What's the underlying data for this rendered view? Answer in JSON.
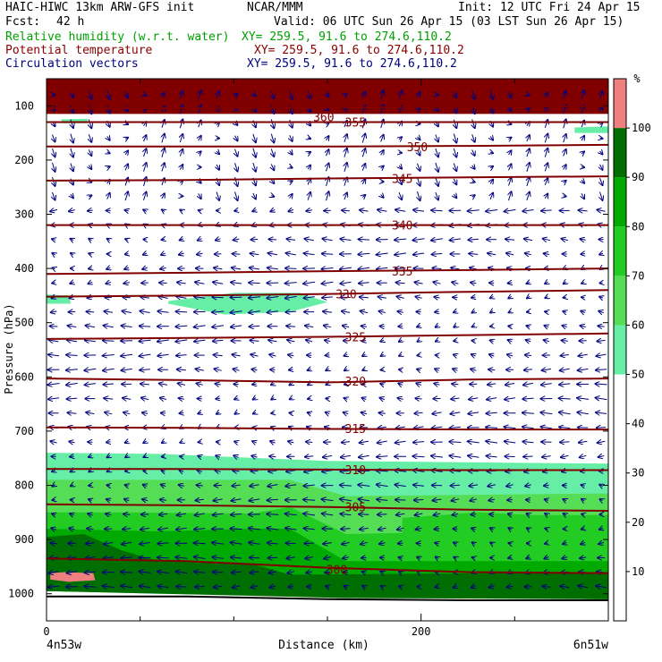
{
  "header": {
    "model_title": "HAIC-HIWC 13km ARW-GFS init",
    "org": "NCAR/MMM",
    "init": "Init: 12 UTC Fri 24 Apr 15",
    "fcst_label": "Fcst:",
    "fcst_value": "42 h",
    "valid": "Valid: 06 UTC Sun 26 Apr 15 (03 LST Sun 26 Apr 15)"
  },
  "fields": [
    {
      "name": "Relative humidity (w.r.t. water)",
      "xy": "XY= 259.5, 91.6 to 274.6,110.2",
      "color": "#00a000"
    },
    {
      "name": "Potential temperature",
      "xy": "XY= 259.5, 91.6 to 274.6,110.2",
      "color": "#8b0000"
    },
    {
      "name": "Circulation vectors",
      "xy": "XY= 259.5, 91.6 to 274.6,110.2",
      "color": "#000080"
    }
  ],
  "chart_data": {
    "type": "heatmap",
    "xlabel": "Distance (km)",
    "ylabel": "Pressure (hPa)",
    "x_ticks": [
      0,
      200
    ],
    "x_endpoint_labels": [
      "4n53w",
      "6n51w"
    ],
    "xlim": [
      0,
      300
    ],
    "y_ticks": [
      100,
      200,
      300,
      400,
      500,
      600,
      700,
      800,
      900,
      1000
    ],
    "ylim": [
      1050,
      50
    ],
    "colorbar": {
      "unit": "%",
      "levels": [
        10,
        20,
        30,
        40,
        50,
        60,
        70,
        80,
        90,
        100
      ],
      "bands": [
        {
          "from": 50,
          "to": 60,
          "color": "#66eea6"
        },
        {
          "from": 60,
          "to": 70,
          "color": "#55dd55"
        },
        {
          "from": 70,
          "to": 80,
          "color": "#22cc22"
        },
        {
          "from": 80,
          "to": 90,
          "color": "#00aa00"
        },
        {
          "from": 90,
          "to": 100,
          "color": "#006e00"
        },
        {
          "from": 100,
          "to": 110,
          "color": "#f08080"
        }
      ]
    },
    "isentropes": [
      {
        "theta": 300,
        "p": [
          935,
          940,
          952,
          960,
          962
        ]
      },
      {
        "theta": 305,
        "p": [
          835,
          837,
          840,
          845,
          847
        ]
      },
      {
        "theta": 310,
        "p": [
          770,
          770,
          771,
          772,
          772
        ]
      },
      {
        "theta": 315,
        "p": [
          693,
          694,
          696,
          697,
          697
        ]
      },
      {
        "theta": 320,
        "p": [
          603,
          606,
          610,
          605,
          603
        ]
      },
      {
        "theta": 325,
        "p": [
          530,
          528,
          526,
          523,
          520
        ]
      },
      {
        "theta": 330,
        "p": [
          452,
          450,
          447,
          443,
          440
        ]
      },
      {
        "theta": 335,
        "p": [
          410,
          408,
          405,
          403,
          400
        ]
      },
      {
        "theta": 340,
        "p": [
          320,
          320,
          320,
          320,
          320
        ]
      },
      {
        "theta": 345,
        "p": [
          238,
          237,
          234,
          232,
          230
        ]
      },
      {
        "theta": 350,
        "p": [
          175,
          175,
          175,
          174,
          172
        ]
      },
      {
        "theta": 355,
        "p": [
          130,
          130,
          130,
          130,
          130
        ]
      },
      {
        "theta": 360,
        "p": [
          105,
          104,
          103,
          102,
          101
        ]
      }
    ],
    "isentrope_x": [
      0,
      75,
      150,
      225,
      300
    ],
    "isentrope_label_positions": [
      {
        "theta": 300,
        "x": 155,
        "p": 955
      },
      {
        "theta": 305,
        "x": 165,
        "p": 840
      },
      {
        "theta": 310,
        "x": 165,
        "p": 771
      },
      {
        "theta": 315,
        "x": 165,
        "p": 695
      },
      {
        "theta": 320,
        "x": 165,
        "p": 608
      },
      {
        "theta": 325,
        "x": 165,
        "p": 526
      },
      {
        "theta": 330,
        "x": 160,
        "p": 447
      },
      {
        "theta": 335,
        "x": 190,
        "p": 405
      },
      {
        "theta": 340,
        "x": 190,
        "p": 320
      },
      {
        "theta": 345,
        "x": 190,
        "p": 234
      },
      {
        "theta": 350,
        "x": 198,
        "p": 175
      },
      {
        "theta": 355,
        "x": 165,
        "p": 130
      },
      {
        "theta": 360,
        "x": 148,
        "p": 120
      }
    ],
    "rh_regions": [
      {
        "level": 90,
        "x": [
          0,
          60,
          150,
          300,
          300,
          0
        ],
        "p": [
          85,
          85,
          85,
          85,
          50,
          50
        ]
      },
      {
        "level": 50,
        "x": [
          0,
          60,
          150,
          300,
          300,
          150,
          60,
          0
        ],
        "p": [
          740,
          742,
          755,
          760,
          1010,
          1005,
          1000,
          995
        ]
      },
      {
        "level": 60,
        "x": [
          0,
          60,
          130,
          160,
          300,
          300,
          160,
          0
        ],
        "p": [
          790,
          790,
          790,
          820,
          815,
          1010,
          1005,
          995
        ]
      },
      {
        "level": 70,
        "x": [
          0,
          40,
          110,
          130,
          160,
          300,
          300,
          160,
          0
        ],
        "p": [
          850,
          850,
          852,
          840,
          890,
          880,
          1010,
          1005,
          995
        ]
      },
      {
        "level": 70,
        "x": [
          190,
          230,
          260,
          300,
          300,
          230,
          190
        ],
        "p": [
          860,
          850,
          855,
          855,
          920,
          910,
          900
        ]
      },
      {
        "level": 80,
        "x": [
          0,
          60,
          110,
          130,
          160,
          300,
          300,
          160,
          0
        ],
        "p": [
          880,
          885,
          880,
          880,
          940,
          940,
          1010,
          1005,
          995
        ]
      },
      {
        "level": 90,
        "x": [
          0,
          20,
          40,
          60,
          110,
          130,
          300,
          300,
          160,
          0
        ],
        "p": [
          895,
          890,
          920,
          940,
          945,
          965,
          960,
          1010,
          1008,
          995
        ]
      },
      {
        "level": 100,
        "x": [
          2,
          10,
          25,
          26,
          12,
          2
        ],
        "p": [
          962,
          960,
          962,
          975,
          978,
          974
        ]
      },
      {
        "level": 50,
        "x": [
          65,
          100,
          135,
          150,
          130,
          95,
          65
        ],
        "p": [
          460,
          445,
          445,
          462,
          480,
          485,
          465
        ]
      },
      {
        "level": 50,
        "x": [
          0,
          12,
          13,
          0
        ],
        "p": [
          448,
          450,
          465,
          465
        ]
      },
      {
        "level": 50,
        "x": [
          8,
          22,
          22,
          8
        ],
        "p": [
          125,
          124,
          132,
          132
        ]
      },
      {
        "level": 50,
        "x": [
          282,
          300,
          300,
          282
        ],
        "p": [
          140,
          138,
          150,
          150
        ]
      }
    ],
    "terrain_p": [
      1005,
      1005,
      1010,
      1012,
      1012
    ],
    "terrain_x": [
      0,
      75,
      150,
      225,
      300
    ]
  }
}
